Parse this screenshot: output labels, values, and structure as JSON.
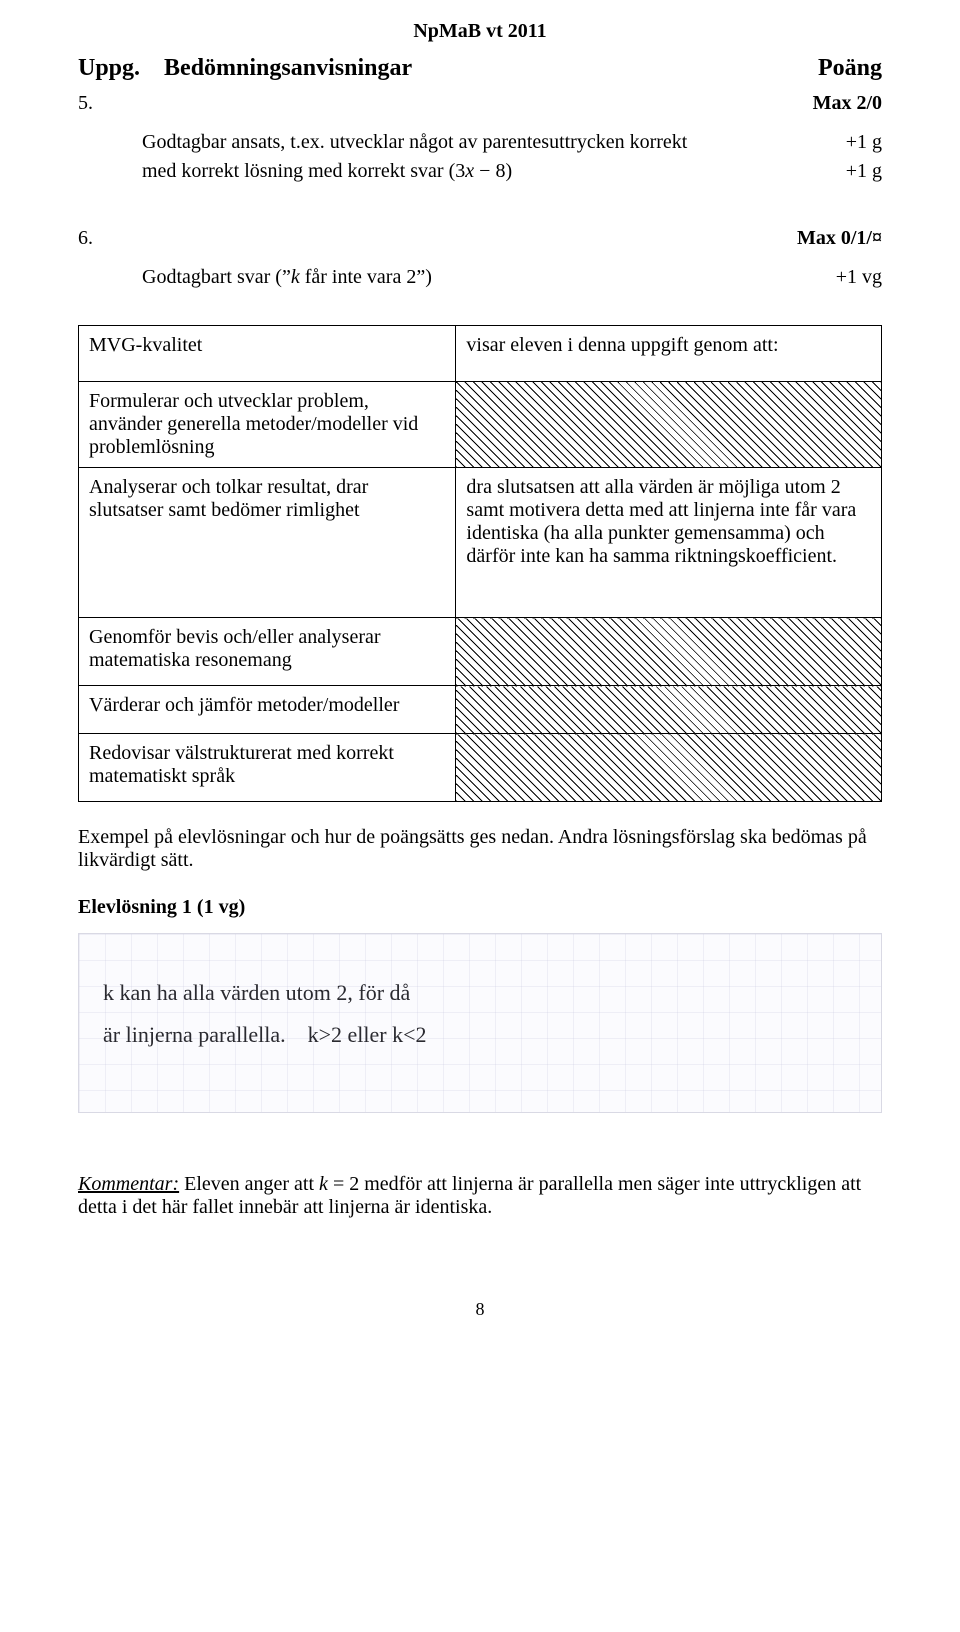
{
  "header": "NpMaB vt 2011",
  "columns": {
    "left": "Uppg.",
    "mid": "Bedömningsanvisningar",
    "right": "Poäng"
  },
  "q5": {
    "num": "5.",
    "max": "Max 2/0",
    "line1_text": "Godtagbar ansats, t.ex. utvecklar något av parentesuttrycken korrekt",
    "line1_pts": "+1 g",
    "line2_prefix": "med korrekt lösning med korrekt svar ",
    "line2_expr_open": "(",
    "line2_expr_a": "3",
    "line2_expr_var": "x",
    "line2_expr_op": " − ",
    "line2_expr_b": "8",
    "line2_expr_close": ")",
    "line2_pts": "+1 g"
  },
  "q6": {
    "num": "6.",
    "max": "Max 0/1/¤",
    "line1_prefix": "Godtagbart svar (”",
    "line1_ital": "k",
    "line1_suffix": " får inte vara 2”)",
    "line1_pts": "+1 vg"
  },
  "table": {
    "r1_left": "MVG-kvalitet",
    "r1_right": "visar eleven i denna uppgift genom att:",
    "r2_left": "Formulerar och utvecklar problem, använder generella metoder/modeller vid problemlösning",
    "r3_left": "Analyserar och tolkar resultat, drar slutsatser samt bedömer rimlighet",
    "r3_right": "dra slutsatsen att alla värden är möjliga utom 2 samt motivera detta med att linjerna inte får vara identiska (ha alla punkter gemensamma) och därför inte kan ha samma riktningskoefficient.",
    "r4_left": "Genomför bevis och/eller analyserar matematiska resonemang",
    "r5_left": "Värderar och jämför metoder/modeller",
    "r6_left": "Redovisar välstrukturerat med korrekt matematiskt språk"
  },
  "paragraph": "Exempel på elevlösningar och hur de poängsätts ges nedan. Andra lösningsförslag ska bedömas på likvärdigt sätt.",
  "elev_title": "Elevlösning 1 (1 vg)",
  "hand": {
    "line1": "k kan ha alla värden utom 2, för då",
    "line2": "är linjerna parallella. k>2 eller k<2"
  },
  "kommentar": {
    "label": "Kommentar:",
    "body_part1": " Eleven anger att ",
    "k": "k",
    "body_part2": " = 2 medför att linjerna är parallella men säger inte uttryckligen att detta i det här fallet innebär att linjerna är identiska."
  },
  "pagenum": "8"
}
